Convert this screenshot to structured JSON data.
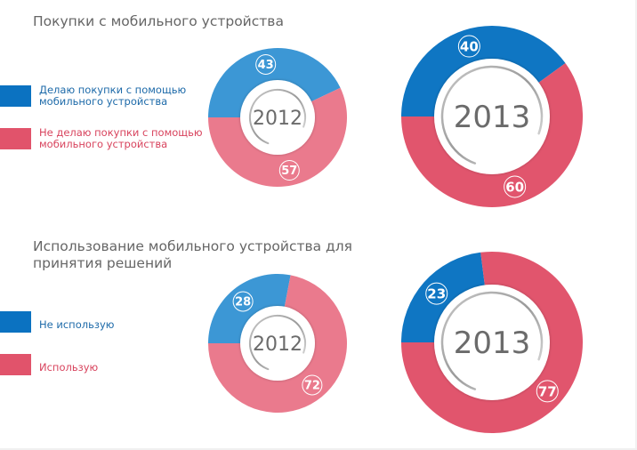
{
  "colors": {
    "blue_2013": "#0f76c3",
    "pink_2013": "#e1556d",
    "blue_2012": "#3c97d5",
    "pink_2012": "#ea7a8d",
    "legend_blue": "#0b72c1",
    "legend_pink": "#e1536b",
    "year_text": "#6b6b6b"
  },
  "sections": [
    {
      "title": "Покупки с мобильного устройства",
      "legend": [
        {
          "label": "Делаю покупки с помощью мобильного устройства",
          "color": "blue"
        },
        {
          "label": "Не делаю покупки с помощью мобильного устройства",
          "color": "pink"
        }
      ]
    },
    {
      "title": "Использование мобильного устройства для принятия решений",
      "legend": [
        {
          "label": "Не использую",
          "color": "blue"
        },
        {
          "label": "Использую",
          "color": "pink"
        }
      ]
    }
  ],
  "chart_data": [
    {
      "type": "pie",
      "title": "Покупки с мобильного устройства",
      "year": "2012",
      "categories": [
        "Делаю покупки с помощью мобильного устройства",
        "Не делаю покупки с помощью мобильного устройства"
      ],
      "values": [
        43,
        57
      ],
      "labels": [
        "43",
        "57"
      ]
    },
    {
      "type": "pie",
      "title": "Покупки с мобильного устройства",
      "year": "2013",
      "categories": [
        "Делаю покупки с помощью мобильного устройства",
        "Не делаю покупки с помощью мобильного устройства"
      ],
      "values": [
        40,
        60
      ],
      "labels": [
        "40",
        "60"
      ]
    },
    {
      "type": "pie",
      "title": "Использование мобильного устройства для принятия решений",
      "year": "2012",
      "categories": [
        "Не использую",
        "Использую"
      ],
      "values": [
        28,
        72
      ],
      "labels": [
        "28",
        "72"
      ]
    },
    {
      "type": "pie",
      "title": "Использование мобильного устройства для принятия решений",
      "year": "2013",
      "categories": [
        "Не использую",
        "Использую"
      ],
      "values": [
        23,
        77
      ],
      "labels": [
        "23",
        "77"
      ]
    }
  ]
}
